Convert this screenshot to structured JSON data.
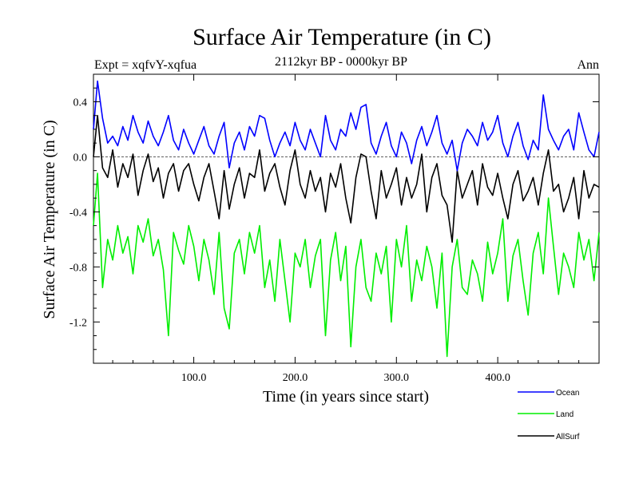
{
  "chart_data": {
    "type": "line",
    "title": "Surface Air Temperature (in C)",
    "subtitle": "2112kyr BP - 0000kyr BP",
    "left_label": "Expt = xqfvY-xqfua",
    "right_label": "Ann",
    "xlabel": "Time (in years since start)",
    "ylabel": "Surface Air Temperature (in C)",
    "xlim": [
      1,
      500
    ],
    "ylim": [
      -1.5,
      0.6
    ],
    "x_ticks": [
      100,
      200,
      300,
      400
    ],
    "x_tick_labels": [
      "100.0",
      "200.0",
      "300.0",
      "400.0"
    ],
    "y_ticks": [
      0.4,
      0.0,
      -0.4,
      -0.8,
      -1.2
    ],
    "y_tick_labels": [
      "0.4",
      "0.0",
      "-0.4",
      "-0.8",
      "-1.2"
    ],
    "zero_line": true,
    "legend_position": "bottom-right",
    "series": [
      {
        "name": "Ocean",
        "color": "#0000ff",
        "x": [
          1,
          5,
          10,
          15,
          20,
          25,
          30,
          35,
          40,
          45,
          50,
          55,
          60,
          65,
          70,
          75,
          80,
          85,
          90,
          95,
          100,
          105,
          110,
          115,
          120,
          125,
          130,
          135,
          140,
          145,
          150,
          155,
          160,
          165,
          170,
          175,
          180,
          185,
          190,
          195,
          200,
          205,
          210,
          215,
          220,
          225,
          230,
          235,
          240,
          245,
          250,
          255,
          260,
          265,
          270,
          275,
          280,
          285,
          290,
          295,
          300,
          305,
          310,
          315,
          320,
          325,
          330,
          335,
          340,
          345,
          350,
          355,
          360,
          365,
          370,
          375,
          380,
          385,
          390,
          395,
          400,
          405,
          410,
          415,
          420,
          425,
          430,
          435,
          440,
          445,
          450,
          455,
          460,
          465,
          470,
          475,
          480,
          485,
          490,
          495,
          500
        ],
        "values": [
          0.2,
          0.55,
          0.28,
          0.1,
          0.15,
          0.08,
          0.22,
          0.12,
          0.3,
          0.18,
          0.1,
          0.26,
          0.15,
          0.08,
          0.18,
          0.3,
          0.12,
          0.05,
          0.2,
          0.1,
          0.02,
          0.12,
          0.22,
          0.08,
          0.02,
          0.15,
          0.25,
          -0.08,
          0.1,
          0.18,
          0.05,
          0.22,
          0.15,
          0.3,
          0.28,
          0.12,
          0.0,
          0.1,
          0.18,
          0.08,
          0.25,
          0.12,
          0.05,
          0.2,
          0.1,
          0.0,
          0.3,
          0.12,
          0.05,
          0.2,
          0.15,
          0.32,
          0.2,
          0.36,
          0.38,
          0.1,
          0.02,
          0.15,
          0.25,
          0.08,
          0.0,
          0.18,
          0.1,
          -0.05,
          0.12,
          0.22,
          0.08,
          0.18,
          0.3,
          0.1,
          0.02,
          0.12,
          -0.1,
          0.1,
          0.2,
          0.15,
          0.08,
          0.25,
          0.12,
          0.18,
          0.3,
          0.1,
          0.0,
          0.15,
          0.25,
          0.08,
          -0.02,
          0.12,
          0.05,
          0.45,
          0.2,
          0.12,
          0.05,
          0.15,
          0.2,
          0.05,
          0.32,
          0.18,
          0.05,
          0.0,
          0.18
        ]
      },
      {
        "name": "Land",
        "color": "#00ee00",
        "x": [
          1,
          5,
          10,
          15,
          20,
          25,
          30,
          35,
          40,
          45,
          50,
          55,
          60,
          65,
          70,
          75,
          80,
          85,
          90,
          95,
          100,
          105,
          110,
          115,
          120,
          125,
          130,
          135,
          140,
          145,
          150,
          155,
          160,
          165,
          170,
          175,
          180,
          185,
          190,
          195,
          200,
          205,
          210,
          215,
          220,
          225,
          230,
          235,
          240,
          245,
          250,
          255,
          260,
          265,
          270,
          275,
          280,
          285,
          290,
          295,
          300,
          305,
          310,
          315,
          320,
          325,
          330,
          335,
          340,
          345,
          350,
          355,
          360,
          365,
          370,
          375,
          380,
          385,
          390,
          395,
          400,
          405,
          410,
          415,
          420,
          425,
          430,
          435,
          440,
          445,
          450,
          455,
          460,
          465,
          470,
          475,
          480,
          485,
          490,
          495,
          500
        ],
        "values": [
          -0.5,
          -0.12,
          -0.95,
          -0.6,
          -0.75,
          -0.5,
          -0.7,
          -0.58,
          -0.85,
          -0.5,
          -0.62,
          -0.45,
          -0.72,
          -0.6,
          -0.82,
          -1.3,
          -0.55,
          -0.68,
          -0.78,
          -0.5,
          -0.65,
          -0.9,
          -0.6,
          -0.75,
          -1.0,
          -0.55,
          -1.1,
          -1.25,
          -0.7,
          -0.6,
          -0.85,
          -0.55,
          -0.7,
          -0.5,
          -0.95,
          -0.75,
          -1.05,
          -0.6,
          -0.9,
          -1.2,
          -0.7,
          -0.8,
          -0.6,
          -0.95,
          -0.72,
          -0.6,
          -1.3,
          -0.75,
          -0.55,
          -0.9,
          -0.65,
          -1.38,
          -0.8,
          -0.6,
          -0.95,
          -1.05,
          -0.7,
          -0.85,
          -0.65,
          -1.2,
          -0.6,
          -0.8,
          -0.5,
          -1.05,
          -0.75,
          -0.9,
          -0.65,
          -0.8,
          -1.1,
          -0.7,
          -1.45,
          -0.8,
          -0.6,
          -0.95,
          -1.0,
          -0.75,
          -0.85,
          -1.05,
          -0.62,
          -0.85,
          -0.7,
          -0.45,
          -1.05,
          -0.72,
          -0.6,
          -0.9,
          -1.15,
          -0.7,
          -0.55,
          -0.85,
          -0.3,
          -0.65,
          -1.0,
          -0.7,
          -0.8,
          -0.95,
          -0.55,
          -0.75,
          -0.6,
          -0.9,
          -0.55
        ]
      },
      {
        "name": "AllSurf",
        "color": "#000000",
        "x": [
          1,
          5,
          10,
          15,
          20,
          25,
          30,
          35,
          40,
          45,
          50,
          55,
          60,
          65,
          70,
          75,
          80,
          85,
          90,
          95,
          100,
          105,
          110,
          115,
          120,
          125,
          130,
          135,
          140,
          145,
          150,
          155,
          160,
          165,
          170,
          175,
          180,
          185,
          190,
          195,
          200,
          205,
          210,
          215,
          220,
          225,
          230,
          235,
          240,
          245,
          250,
          255,
          260,
          265,
          270,
          275,
          280,
          285,
          290,
          295,
          300,
          305,
          310,
          315,
          320,
          325,
          330,
          335,
          340,
          345,
          350,
          355,
          360,
          365,
          370,
          375,
          380,
          385,
          390,
          395,
          400,
          405,
          410,
          415,
          420,
          425,
          430,
          435,
          440,
          445,
          450,
          455,
          460,
          465,
          470,
          475,
          480,
          485,
          490,
          495,
          500
        ],
        "values": [
          0.0,
          0.3,
          -0.08,
          -0.15,
          0.05,
          -0.22,
          -0.05,
          -0.15,
          0.02,
          -0.28,
          -0.1,
          0.02,
          -0.18,
          -0.08,
          -0.3,
          -0.12,
          -0.05,
          -0.25,
          -0.1,
          -0.05,
          -0.2,
          -0.32,
          -0.15,
          -0.05,
          -0.25,
          -0.45,
          -0.1,
          -0.38,
          -0.2,
          -0.08,
          -0.3,
          -0.12,
          -0.15,
          0.05,
          -0.25,
          -0.12,
          -0.05,
          -0.22,
          -0.35,
          -0.1,
          0.05,
          -0.2,
          -0.3,
          -0.1,
          -0.25,
          -0.15,
          -0.4,
          -0.12,
          -0.22,
          -0.05,
          -0.3,
          -0.48,
          -0.15,
          0.02,
          0.0,
          -0.25,
          -0.45,
          -0.1,
          -0.3,
          -0.2,
          -0.08,
          -0.35,
          -0.15,
          -0.3,
          -0.2,
          0.02,
          -0.4,
          -0.15,
          -0.05,
          -0.28,
          -0.35,
          -0.62,
          -0.1,
          -0.3,
          -0.2,
          -0.1,
          -0.35,
          -0.05,
          -0.22,
          -0.28,
          -0.12,
          -0.3,
          -0.45,
          -0.2,
          -0.1,
          -0.32,
          -0.25,
          -0.15,
          -0.35,
          -0.12,
          0.05,
          -0.25,
          -0.2,
          -0.4,
          -0.3,
          -0.15,
          -0.45,
          -0.1,
          -0.3,
          -0.2,
          -0.22
        ]
      }
    ]
  }
}
